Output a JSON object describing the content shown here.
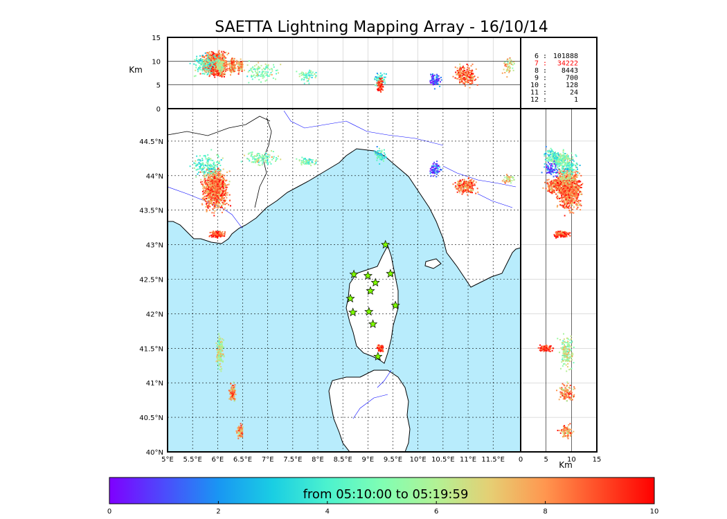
{
  "chart_data": {
    "type": "scatter",
    "title": "SAETTA Lightning Mapping Array - 16/10/14",
    "lon_ticks": [
      "5°E",
      "5.5°E",
      "6°E",
      "6.5°E",
      "7°E",
      "7.5°E",
      "8°E",
      "8.5°E",
      "9°E",
      "9.5°E",
      "10°E",
      "10.5°E",
      "11°E",
      "11.5°E"
    ],
    "lon_values": [
      5,
      5.5,
      6,
      6.5,
      7,
      7.5,
      8,
      8.5,
      9,
      9.5,
      10,
      10.5,
      11,
      11.5
    ],
    "lat_ticks": [
      "40°N",
      "40.5°N",
      "41°N",
      "41.5°N",
      "42°N",
      "42.5°N",
      "43°N",
      "43.5°N",
      "44°N",
      "44.5°N"
    ],
    "lat_values": [
      40,
      40.5,
      41,
      41.5,
      42,
      42.5,
      43,
      43.5,
      44,
      44.5
    ],
    "xlim": [
      5,
      12.05
    ],
    "ylim": [
      40,
      44.97
    ],
    "alt_ticks": [
      "0",
      "5",
      "10",
      "15"
    ],
    "alt_values": [
      0,
      5,
      10,
      15
    ],
    "alt_unit": "Km",
    "alt_lim": [
      0,
      15
    ],
    "stations_table": [
      {
        "stations": "6",
        "count": "101888",
        "color": "#000000"
      },
      {
        "stations": "7",
        "count": "34222",
        "color": "#ff0000"
      },
      {
        "stations": "8",
        "count": "8443",
        "color": "#000000"
      },
      {
        "stations": "9",
        "count": "700",
        "color": "#000000"
      },
      {
        "stations": "10",
        "count": "128",
        "color": "#000000"
      },
      {
        "stations": "11",
        "count": "24",
        "color": "#000000"
      },
      {
        "stations": "12",
        "count": "1",
        "color": "#000000"
      }
    ],
    "stations": [
      [
        9.35,
        43.0
      ],
      [
        8.72,
        42.57
      ],
      [
        9.0,
        42.55
      ],
      [
        9.45,
        42.58
      ],
      [
        9.15,
        42.45
      ],
      [
        9.05,
        42.33
      ],
      [
        8.65,
        42.22
      ],
      [
        9.55,
        42.12
      ],
      [
        8.7,
        42.02
      ],
      [
        9.02,
        42.03
      ],
      [
        9.1,
        41.85
      ],
      [
        9.2,
        41.38
      ]
    ],
    "clusters": [
      {
        "lon": 5.95,
        "lat": 43.8,
        "rlon": 0.35,
        "rlat": 0.4,
        "alt": 9.5,
        "ralt": 3,
        "t": 8.5,
        "n": 900
      },
      {
        "lon": 5.8,
        "lat": 44.15,
        "rlon": 0.4,
        "rlat": 0.25,
        "alt": 9,
        "ralt": 3,
        "t": 4.5,
        "n": 160
      },
      {
        "lon": 6.0,
        "lat": 43.15,
        "rlon": 0.2,
        "rlat": 0.07,
        "alt": 8,
        "ralt": 2,
        "t": 9,
        "n": 120
      },
      {
        "lon": 6.9,
        "lat": 44.25,
        "rlon": 0.5,
        "rlat": 0.15,
        "alt": 8,
        "ralt": 3,
        "t": 5,
        "n": 110
      },
      {
        "lon": 7.8,
        "lat": 44.2,
        "rlon": 0.3,
        "rlat": 0.08,
        "alt": 7,
        "ralt": 2,
        "t": 5,
        "n": 60
      },
      {
        "lon": 9.25,
        "lat": 44.3,
        "rlon": 0.15,
        "rlat": 0.15,
        "alt": 6,
        "ralt": 2,
        "t": 4,
        "n": 70
      },
      {
        "lon": 10.35,
        "lat": 44.1,
        "rlon": 0.15,
        "rlat": 0.15,
        "alt": 6,
        "ralt": 2,
        "t": 1,
        "n": 70
      },
      {
        "lon": 10.95,
        "lat": 43.85,
        "rlon": 0.3,
        "rlat": 0.15,
        "alt": 7,
        "ralt": 3,
        "t": 8.5,
        "n": 220
      },
      {
        "lon": 11.8,
        "lat": 43.95,
        "rlon": 0.15,
        "rlat": 0.08,
        "alt": 9,
        "ralt": 3,
        "t": 7,
        "n": 50
      },
      {
        "lon": 6.05,
        "lat": 41.45,
        "rlon": 0.1,
        "rlat": 0.3,
        "alt": 9,
        "ralt": 2,
        "t": 6,
        "n": 170
      },
      {
        "lon": 6.3,
        "lat": 40.85,
        "rlon": 0.08,
        "rlat": 0.2,
        "alt": 9,
        "ralt": 2,
        "t": 8,
        "n": 110
      },
      {
        "lon": 6.45,
        "lat": 40.3,
        "rlon": 0.1,
        "rlat": 0.15,
        "alt": 9,
        "ralt": 2,
        "t": 8,
        "n": 80
      },
      {
        "lon": 9.25,
        "lat": 41.5,
        "rlon": 0.08,
        "rlat": 0.08,
        "alt": 5,
        "ralt": 2,
        "t": 9.5,
        "n": 80
      }
    ],
    "colorbar": {
      "min": 0,
      "max": 10,
      "ticks": [
        "0",
        "2",
        "4",
        "6",
        "8",
        "10"
      ],
      "tick_values": [
        0,
        2,
        4,
        6,
        8,
        10
      ],
      "caption": "from 05:10:00 to 05:19:59",
      "colors": [
        "#7f00ff",
        "#4c4bfc",
        "#1996f3",
        "#1acee3",
        "#4cf2ce",
        "#80feb3",
        "#b2f295",
        "#e6ce73",
        "#ff964f",
        "#ff4b26",
        "#ff0000"
      ]
    },
    "sea_color": "#b8ecfc",
    "star_color": "#7fff00"
  }
}
